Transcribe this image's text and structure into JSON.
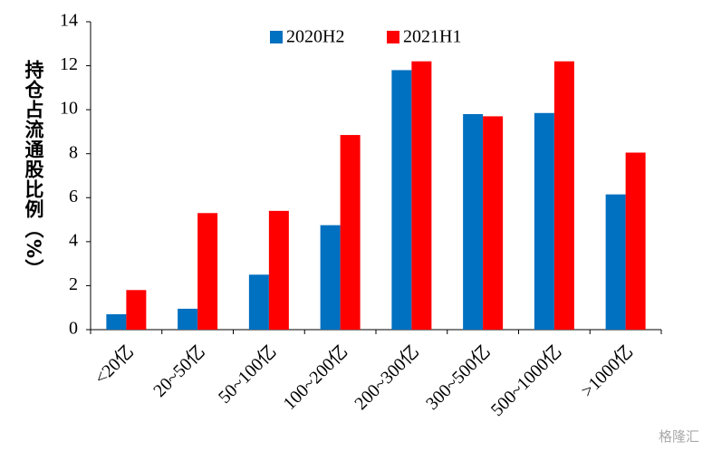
{
  "chart_data": {
    "type": "bar",
    "y_label": "持仓占流通股比例（%）",
    "categories": [
      "<20亿",
      "20~50亿",
      "50~100亿",
      "100~200亿",
      "200~300亿",
      "300~500亿",
      "500~1000亿",
      ">1000亿"
    ],
    "series": [
      {
        "name": "2020H2",
        "color": "#0070c0",
        "values": [
          0.7,
          0.95,
          2.5,
          4.75,
          11.8,
          9.8,
          9.85,
          6.15
        ]
      },
      {
        "name": "2021H1",
        "color": "#ff0000",
        "values": [
          1.8,
          5.3,
          5.4,
          8.85,
          12.2,
          9.7,
          12.2,
          8.05
        ]
      }
    ],
    "ylim": [
      0,
      14
    ],
    "yticks": [
      0,
      2,
      4,
      6,
      8,
      10,
      12,
      14
    ],
    "grid": false,
    "legend": "top",
    "watermark": "格隆汇"
  }
}
